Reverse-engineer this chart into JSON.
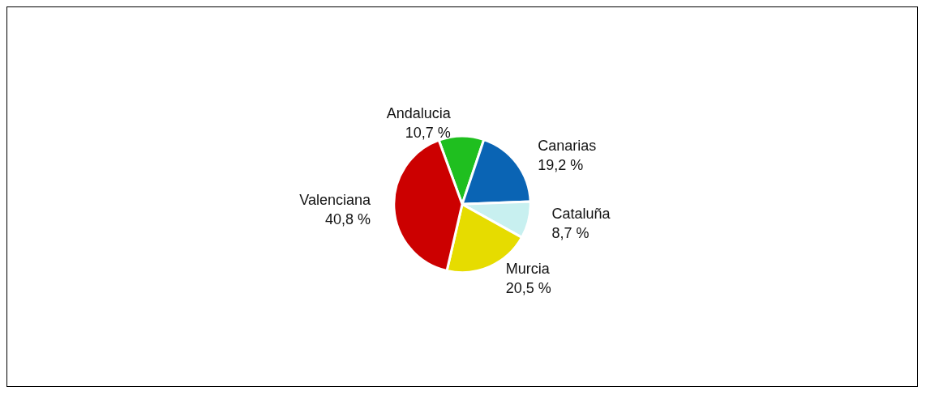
{
  "chart_data": {
    "type": "pie",
    "categories": [
      "Andalucia",
      "Canarias",
      "Cataluña",
      "Murcia",
      "Valenciana"
    ],
    "values": [
      10.7,
      19.2,
      8.7,
      20.5,
      40.8
    ],
    "value_labels": [
      "10,7 %",
      "19,2 %",
      "8,7 %",
      "20,5 %",
      "40,8 %"
    ],
    "colors": [
      "#1fbf1f",
      "#0a64b4",
      "#c8f0f0",
      "#e6dc00",
      "#cc0000"
    ],
    "legend": false
  }
}
